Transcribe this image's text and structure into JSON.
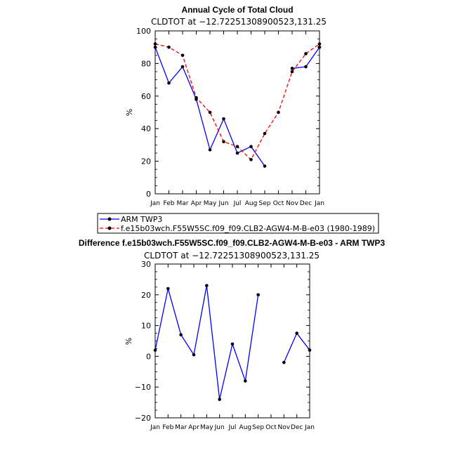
{
  "chart_data": [
    {
      "type": "line",
      "title": "Annual Cycle of Total Cloud",
      "subtitle": "CLDTOT at −12.72251308900523,131.25",
      "ylabel": "%",
      "ylim": [
        0,
        100
      ],
      "yticks": [
        "0",
        "20",
        "40",
        "60",
        "80",
        "100"
      ],
      "categories": [
        "Jan",
        "Feb",
        "Mar",
        "Apr",
        "May",
        "Jun",
        "Jul",
        "Aug",
        "Sep",
        "Oct",
        "Nov",
        "Dec",
        "Jan"
      ],
      "series": [
        {
          "name": "ARM TWP3",
          "color": "#0000ff",
          "dash": "solid",
          "values": [
            90,
            68,
            78,
            58,
            27,
            46,
            25,
            29,
            17,
            null,
            77,
            78,
            90
          ]
        },
        {
          "name": "f.e15b03wch.F55W5SC.f09_f09.CLB2-AGW4-M-B-e03 (1980-1989)",
          "color": "#ff0000",
          "dash": "dashed",
          "values": [
            92,
            90,
            85,
            59,
            50,
            32,
            29,
            21,
            37,
            50,
            75,
            86,
            92
          ]
        }
      ],
      "legend": [
        "ARM TWP3",
        "f.e15b03wch.F55W5SC.f09_f09.CLB2-AGW4-M-B-e03 (1980-1989)"
      ]
    },
    {
      "type": "line",
      "title": "Difference f.e15b03wch.F55W5SC.f09_f09.CLB2-AGW4-M-B-e03 - ARM TWP3",
      "subtitle": "CLDTOT at −12.72251308900523,131.25",
      "ylabel": "%",
      "ylim": [
        -20,
        30
      ],
      "yticks": [
        "−20",
        "−10",
        "0",
        "10",
        "20",
        "30"
      ],
      "categories": [
        "Jan",
        "Feb",
        "Mar",
        "Apr",
        "May",
        "Jun",
        "Jul",
        "Aug",
        "Sep",
        "Oct",
        "Nov",
        "Dec",
        "Jan"
      ],
      "series": [
        {
          "name": "Difference",
          "color": "#0000ff",
          "dash": "solid",
          "values": [
            2,
            22,
            7,
            0.5,
            23,
            -14,
            4,
            -8,
            20,
            null,
            -2,
            7.5,
            2
          ]
        }
      ]
    }
  ]
}
